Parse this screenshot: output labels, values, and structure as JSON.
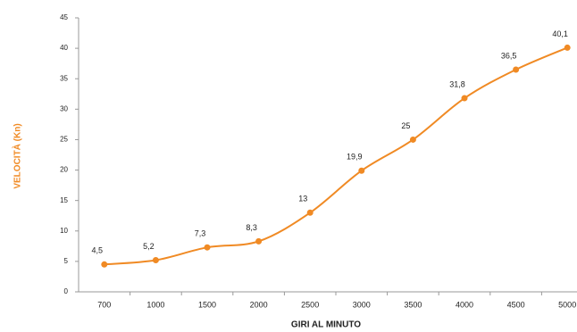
{
  "chart_data": {
    "type": "line",
    "x_label": "GIRI AL MINUTO",
    "y_label": "VELOCITÀ (Kn)",
    "categories": [
      "700",
      "1000",
      "1500",
      "2000",
      "2500",
      "3000",
      "3500",
      "4000",
      "4500",
      "5000"
    ],
    "series": [
      {
        "name": "Velocità",
        "color": "#f08a24",
        "values": [
          4.5,
          5.2,
          7.3,
          8.3,
          13,
          19.9,
          25,
          31.8,
          36.5,
          40.1
        ],
        "value_labels": [
          "4,5",
          "5,2",
          "7,3",
          "8,3",
          "13",
          "19,9",
          "25",
          "31,8",
          "36,5",
          "40,1"
        ]
      }
    ],
    "ylim": [
      0,
      45
    ],
    "yticks": [
      0,
      5,
      10,
      15,
      20,
      25,
      30,
      35,
      40,
      45
    ],
    "grid": false
  }
}
